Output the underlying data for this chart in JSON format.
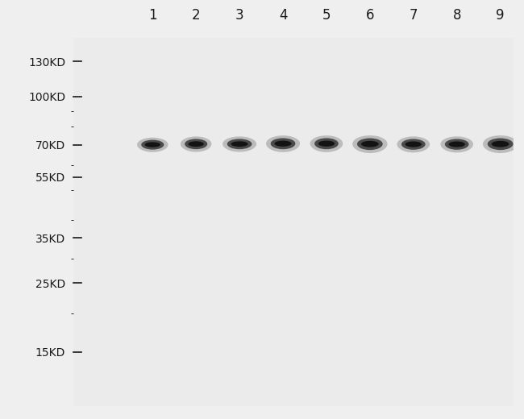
{
  "background_color": "#efefef",
  "panel_color": "#ebebeb",
  "num_lanes": 9,
  "lane_labels": [
    "1",
    "2",
    "3",
    "4",
    "5",
    "6",
    "7",
    "8",
    "9"
  ],
  "mw_markers": [
    "130KD",
    "100KD",
    "70KD",
    "55KD",
    "35KD",
    "25KD",
    "15KD"
  ],
  "mw_values": [
    130,
    100,
    70,
    55,
    35,
    25,
    15
  ],
  "band_mw": 70,
  "band_widths": [
    0.55,
    0.55,
    0.6,
    0.6,
    0.58,
    0.62,
    0.58,
    0.58,
    0.62
  ],
  "band_heights": [
    0.045,
    0.048,
    0.048,
    0.052,
    0.052,
    0.055,
    0.05,
    0.05,
    0.055
  ],
  "band_offsets": [
    0.0,
    0.005,
    0.005,
    0.008,
    0.008,
    0.005,
    0.003,
    0.003,
    0.005
  ],
  "ymin": 10,
  "ymax": 155,
  "fig_width": 6.5,
  "fig_height": 5.2,
  "dpi": 100
}
